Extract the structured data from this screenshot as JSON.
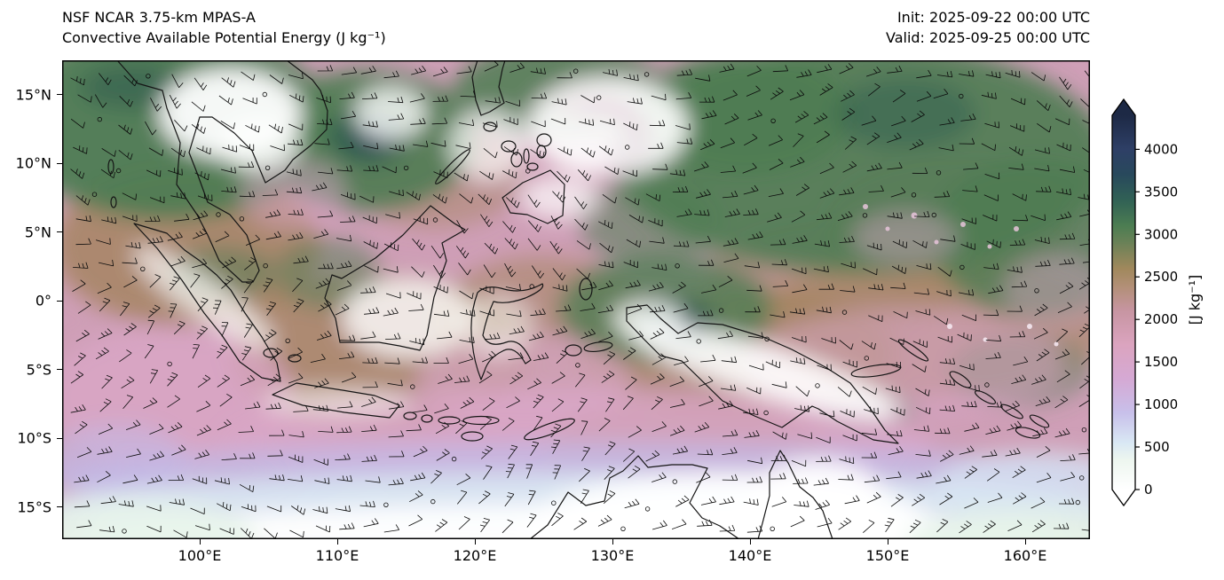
{
  "header": {
    "model": "NSF NCAR 3.75-km MPAS-A",
    "variable": "Convective Available Potential Energy (J kg⁻¹)",
    "init": "Init: 2025-09-22 00:00 UTC",
    "valid": "Valid: 2025-09-25 00:00 UTC"
  },
  "axes": {
    "x_ticks": [
      {
        "label": "100°E",
        "lon": 100
      },
      {
        "label": "110°E",
        "lon": 110
      },
      {
        "label": "120°E",
        "lon": 120
      },
      {
        "label": "130°E",
        "lon": 130
      },
      {
        "label": "140°E",
        "lon": 140
      },
      {
        "label": "150°E",
        "lon": 150
      },
      {
        "label": "160°E",
        "lon": 160
      }
    ],
    "y_ticks": [
      {
        "label": "15°N",
        "lat": 15
      },
      {
        "label": "10°N",
        "lat": 10
      },
      {
        "label": "5°N",
        "lat": 5
      },
      {
        "label": "0°",
        "lat": 0
      },
      {
        "label": "5°S",
        "lat": -5
      },
      {
        "label": "10°S",
        "lat": -10
      },
      {
        "label": "15°S",
        "lat": -15
      }
    ]
  },
  "colorbar": {
    "label": "[J kg⁻¹]",
    "tick_values": [
      0,
      500,
      1000,
      1500,
      2000,
      2500,
      3000,
      3500,
      4000
    ],
    "vmin": 0,
    "vmax": 4400,
    "extended_arrows": true,
    "stops": [
      {
        "v": 0,
        "c": "#ffffff"
      },
      {
        "v": 350,
        "c": "#edf6ef"
      },
      {
        "v": 550,
        "c": "#d9e8f4"
      },
      {
        "v": 900,
        "c": "#c8c0ea"
      },
      {
        "v": 1300,
        "c": "#d5a9d4"
      },
      {
        "v": 1700,
        "c": "#dba4bf"
      },
      {
        "v": 2100,
        "c": "#c795a2"
      },
      {
        "v": 2400,
        "c": "#b18f75"
      },
      {
        "v": 2600,
        "c": "#a0885c"
      },
      {
        "v": 2900,
        "c": "#6a8157"
      },
      {
        "v": 3100,
        "c": "#4c7d52"
      },
      {
        "v": 3400,
        "c": "#316155"
      },
      {
        "v": 3700,
        "c": "#28495c"
      },
      {
        "v": 4000,
        "c": "#2e3f66"
      },
      {
        "v": 4400,
        "c": "#1d2945"
      }
    ]
  }
}
